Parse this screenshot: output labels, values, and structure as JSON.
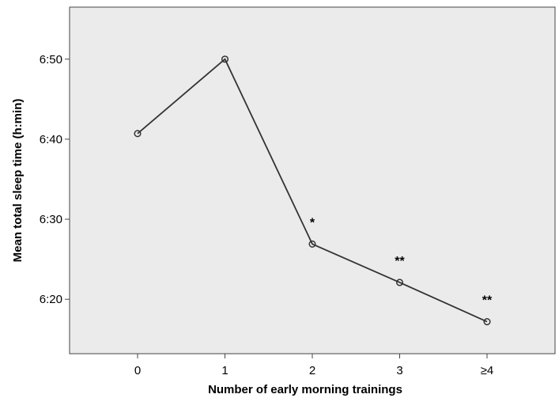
{
  "chart_data": {
    "type": "line",
    "title": "",
    "xlabel": "Number of early morning trainings",
    "ylabel": "Mean total sleep time (h:min)",
    "categories": [
      "0",
      "1",
      "2",
      "3",
      "≥4"
    ],
    "series": [
      {
        "values": [
          400.7,
          410.0,
          386.9,
          382.1,
          377.2
        ]
      }
    ],
    "y_unit": "minutes",
    "yticks": [
      {
        "value": 380,
        "label": "6:20"
      },
      {
        "value": 390,
        "label": "6:30"
      },
      {
        "value": 400,
        "label": "6:40"
      },
      {
        "value": 410,
        "label": "6:50"
      }
    ],
    "ylim": [
      373.2,
      416.5
    ],
    "annotations": [
      "",
      "",
      "*",
      "**",
      "**"
    ],
    "grid": false,
    "colors": {
      "plot_background": "#ebebeb",
      "line": "#333333",
      "marker_stroke": "#333333"
    }
  }
}
